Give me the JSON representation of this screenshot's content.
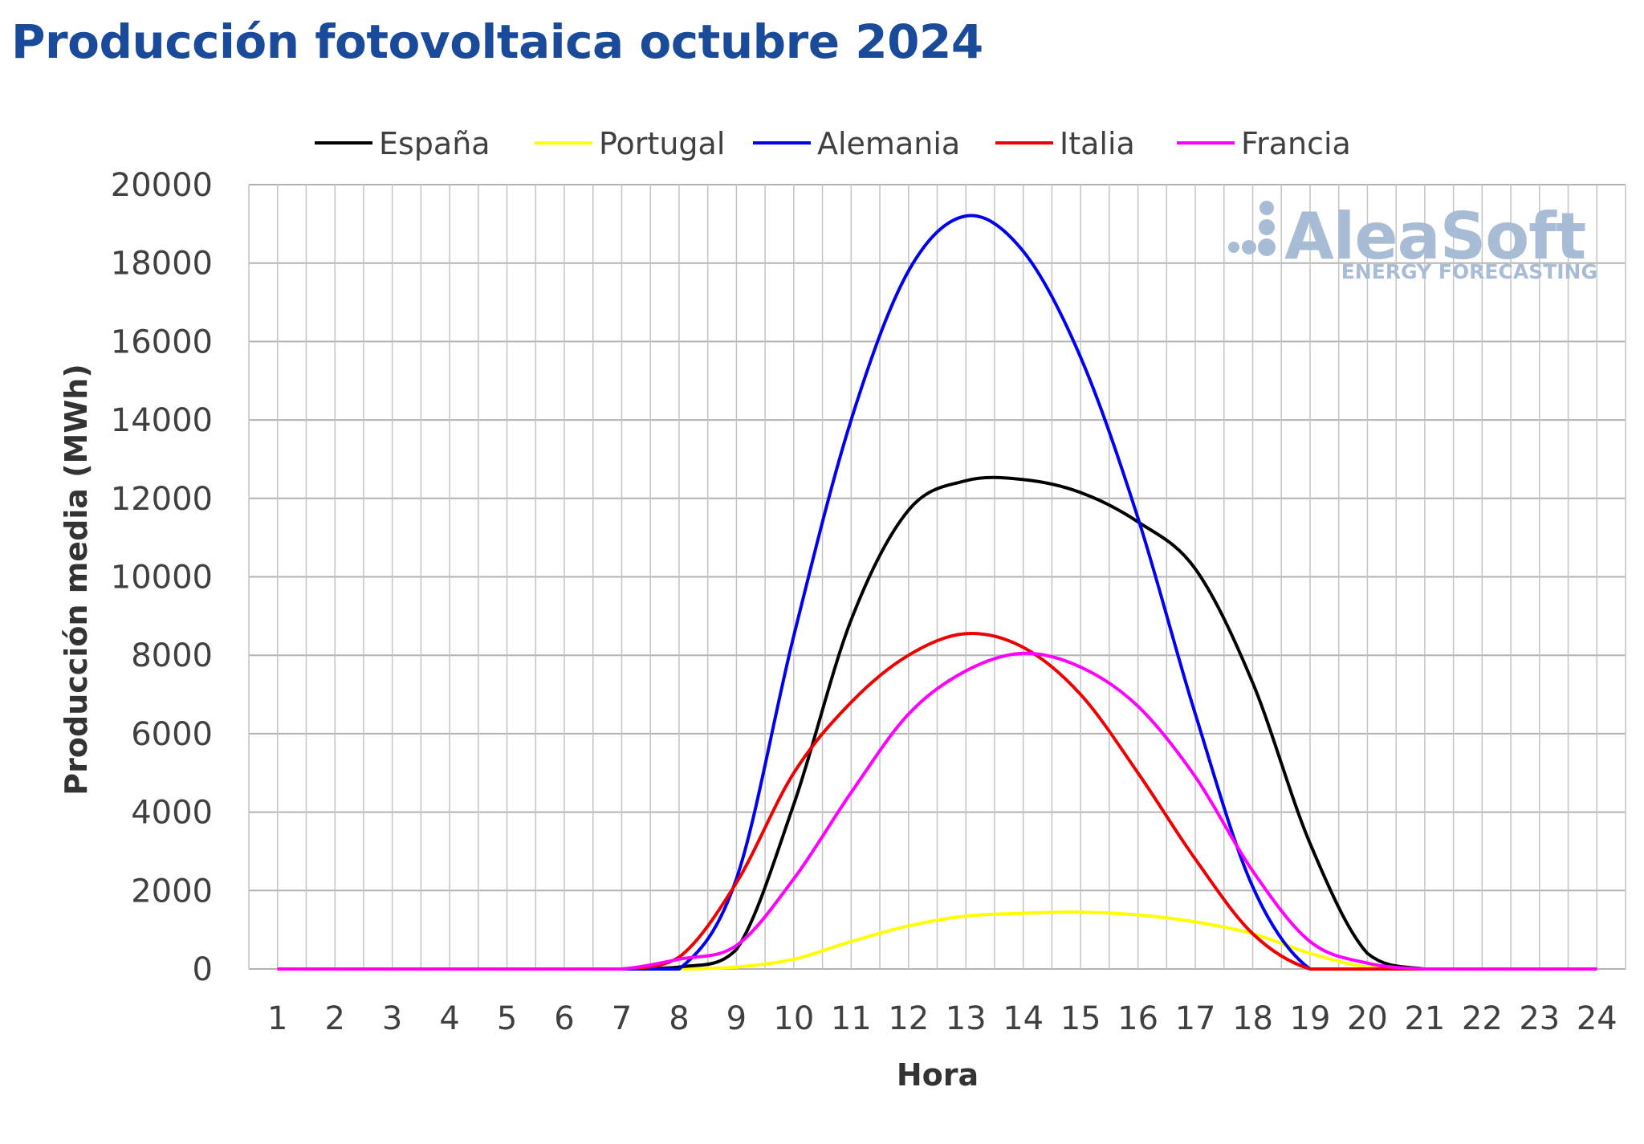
{
  "title": "Producción fotovoltaica octubre 2024",
  "watermark": {
    "brand": "AleaSoft",
    "tagline": "ENERGY FORECASTING"
  },
  "chart_data": {
    "type": "line",
    "title": "Producción fotovoltaica octubre 2024",
    "xlabel": "Hora",
    "ylabel": "Producción media (MWh)",
    "x": [
      1,
      2,
      3,
      4,
      5,
      6,
      7,
      8,
      9,
      10,
      11,
      12,
      13,
      14,
      15,
      16,
      17,
      18,
      19,
      20,
      21,
      22,
      23,
      24
    ],
    "xticks": [
      "1",
      "2",
      "3",
      "4",
      "5",
      "6",
      "7",
      "8",
      "9",
      "10",
      "11",
      "12",
      "13",
      "14",
      "15",
      "16",
      "17",
      "18",
      "19",
      "20",
      "21",
      "22",
      "23",
      "24"
    ],
    "ylim": [
      0,
      20000
    ],
    "yticks": [
      "0",
      "2000",
      "4000",
      "6000",
      "8000",
      "10000",
      "12000",
      "14000",
      "16000",
      "18000",
      "20000"
    ],
    "grid": true,
    "legend_position": "top",
    "series": [
      {
        "name": "España",
        "color": "#000000",
        "values": [
          0,
          0,
          0,
          0,
          0,
          0,
          0,
          50,
          500,
          4200,
          8900,
          11700,
          12450,
          12480,
          12150,
          11400,
          10200,
          7300,
          3200,
          400,
          0,
          0,
          0,
          0
        ]
      },
      {
        "name": "Portugal",
        "color": "#ffff00",
        "values": [
          0,
          0,
          0,
          0,
          0,
          0,
          0,
          0,
          50,
          250,
          700,
          1100,
          1350,
          1420,
          1450,
          1380,
          1200,
          900,
          400,
          50,
          0,
          0,
          0,
          0
        ]
      },
      {
        "name": "Alemania",
        "color": "#0000ee",
        "values": [
          0,
          0,
          0,
          0,
          0,
          0,
          0,
          0,
          2300,
          8500,
          14000,
          17800,
          19200,
          18300,
          15600,
          11500,
          6500,
          2100,
          0,
          0,
          0,
          0,
          0,
          0
        ]
      },
      {
        "name": "Italia",
        "color": "#ee0000",
        "values": [
          0,
          0,
          0,
          0,
          0,
          0,
          0,
          300,
          2200,
          5000,
          6800,
          8000,
          8550,
          8200,
          7000,
          5000,
          2800,
          900,
          0,
          0,
          0,
          0,
          0,
          0
        ]
      },
      {
        "name": "Francia",
        "color": "#ff00ff",
        "values": [
          0,
          0,
          0,
          0,
          0,
          0,
          0,
          250,
          600,
          2300,
          4500,
          6500,
          7600,
          8050,
          7700,
          6700,
          4900,
          2500,
          700,
          150,
          0,
          0,
          0,
          0
        ]
      }
    ]
  }
}
